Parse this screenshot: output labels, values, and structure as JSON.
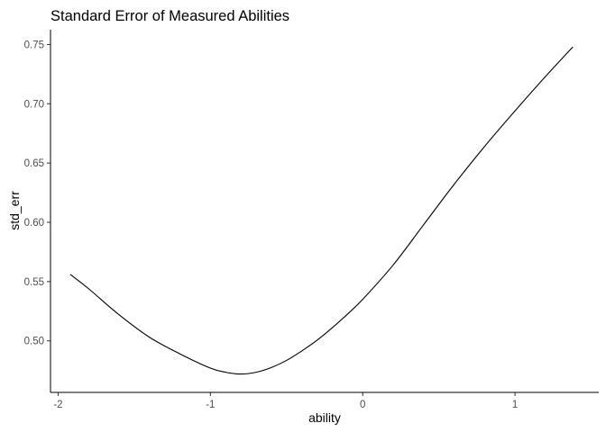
{
  "chart_data": {
    "type": "line",
    "title": "Standard Error of Measured Abilities",
    "xlabel": "ability",
    "ylabel": "std_err",
    "xlim": [
      -2.05,
      1.55
    ],
    "ylim": [
      0.4565,
      0.7625
    ],
    "x_ticks": [
      -2,
      -1,
      0,
      1
    ],
    "x_tick_labels": [
      "-2",
      "-1",
      "0",
      "1"
    ],
    "y_ticks": [
      0.5,
      0.55,
      0.6,
      0.65,
      0.7,
      0.75
    ],
    "y_tick_labels": [
      "0.50",
      "0.55",
      "0.60",
      "0.65",
      "0.70",
      "0.75"
    ],
    "grid": false,
    "series": [
      {
        "color": "#000000",
        "x": [
          -1.92,
          -1.8,
          -1.6,
          -1.4,
          -1.2,
          -1.0,
          -0.9,
          -0.8,
          -0.7,
          -0.6,
          -0.5,
          -0.4,
          -0.3,
          -0.2,
          -0.1,
          0.0,
          0.2,
          0.4,
          0.6,
          0.8,
          1.0,
          1.2,
          1.38
        ],
        "y": [
          0.556,
          0.544,
          0.522,
          0.503,
          0.489,
          0.477,
          0.4735,
          0.472,
          0.4735,
          0.4775,
          0.4835,
          0.4915,
          0.5005,
          0.511,
          0.5225,
          0.535,
          0.564,
          0.598,
          0.632,
          0.664,
          0.694,
          0.723,
          0.748
        ]
      }
    ]
  }
}
